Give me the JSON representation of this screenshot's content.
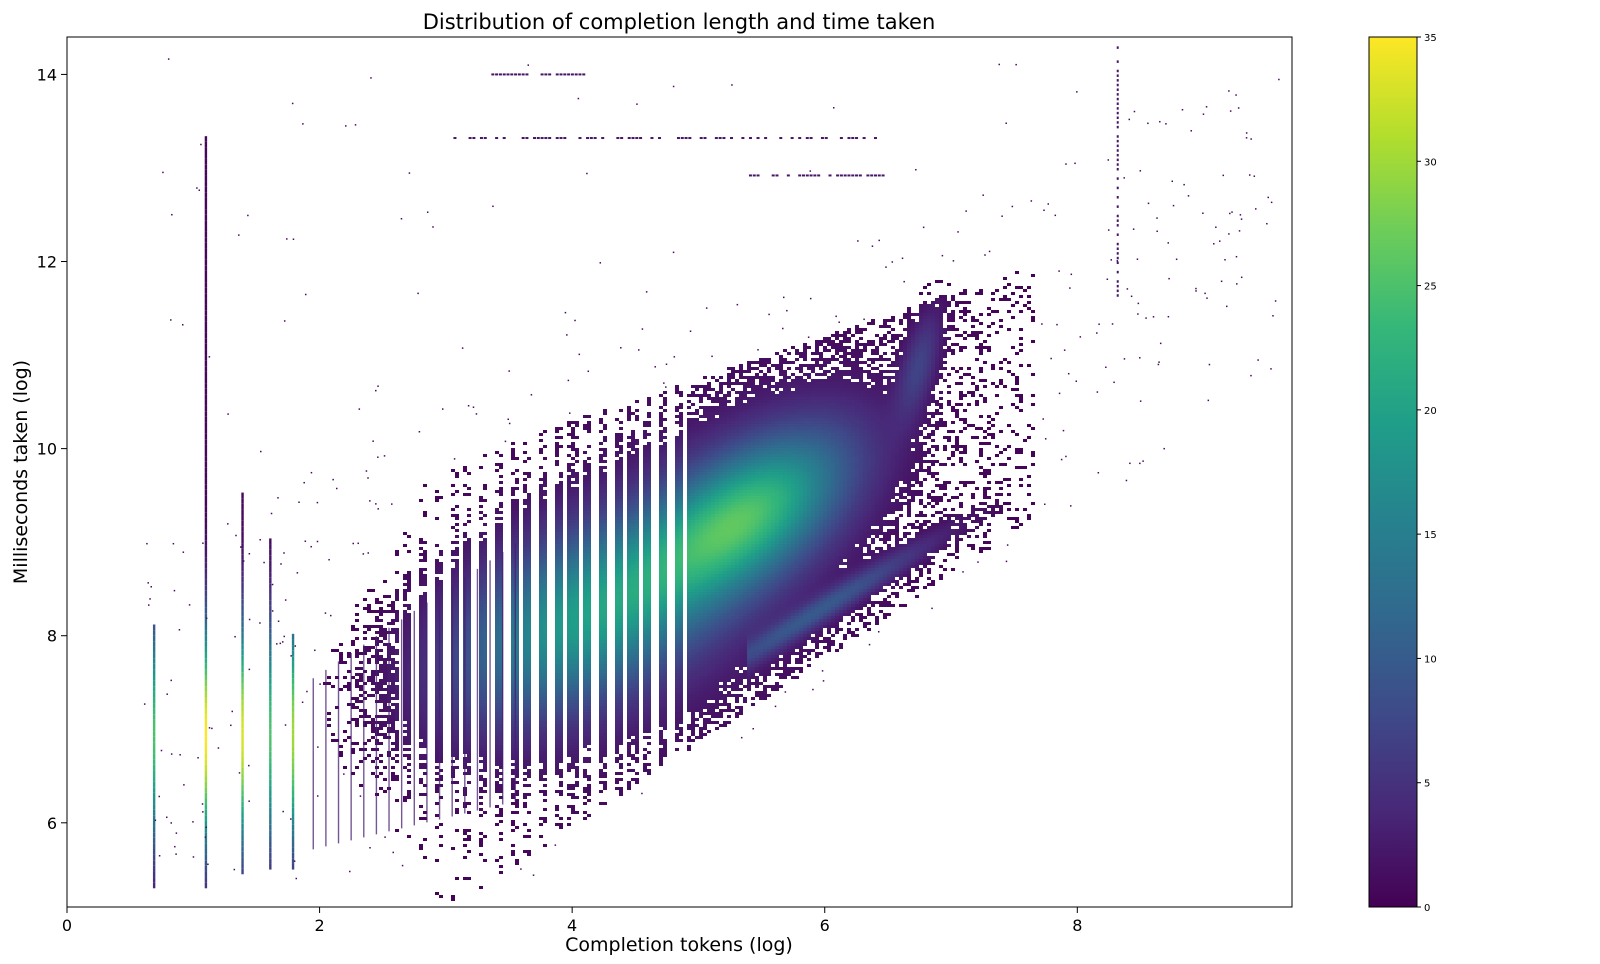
{
  "chart_data": {
    "type": "heatmap",
    "title": "Distribution of completion length and time taken",
    "xlabel": "Completion tokens (log)",
    "ylabel": "Milliseconds taken (log)",
    "xlim": [
      0,
      9.7
    ],
    "ylim": [
      5.1,
      14.4
    ],
    "xticks": [
      {
        "value": 0,
        "label": "0"
      },
      {
        "value": 2,
        "label": "2"
      },
      {
        "value": 4,
        "label": "4"
      },
      {
        "value": 6,
        "label": "6"
      },
      {
        "value": 8,
        "label": "8"
      }
    ],
    "yticks": [
      {
        "value": 6,
        "label": "6"
      },
      {
        "value": 8,
        "label": "8"
      },
      {
        "value": 10,
        "label": "10"
      },
      {
        "value": 12,
        "label": "12"
      },
      {
        "value": 14,
        "label": "14"
      }
    ],
    "colorbar": {
      "colormap": "viridis",
      "range": [
        0,
        35
      ],
      "ticks": [
        {
          "value": 0,
          "label": "0"
        },
        {
          "value": 5,
          "label": "5"
        },
        {
          "value": 10,
          "label": "10"
        },
        {
          "value": 15,
          "label": "15"
        },
        {
          "value": 20,
          "label": "20"
        },
        {
          "value": 25,
          "label": "25"
        },
        {
          "value": 30,
          "label": "30"
        },
        {
          "value": 35,
          "label": "35"
        }
      ]
    },
    "grid": false,
    "legend": "colorbar-right",
    "density_regions": [
      {
        "name": "main-blob",
        "x": 5.4,
        "y": 9.3,
        "count": 24
      },
      {
        "name": "vertical-stripes",
        "x": 4.1,
        "y": 8.2,
        "count": 18
      },
      {
        "name": "lower-ridge",
        "x": 6.0,
        "y": 8.9,
        "count": 8
      },
      {
        "name": "upper-ridge",
        "x": 6.75,
        "y": 10.9,
        "count": 6
      }
    ],
    "discrete_columns": [
      {
        "x": 0.69,
        "y": [
          5.3,
          8.1
        ],
        "peak_count": 25
      },
      {
        "x": 1.1,
        "y": [
          5.3,
          13.3
        ],
        "peak_count": 35
      },
      {
        "x": 1.39,
        "y": [
          5.45,
          9.5
        ],
        "peak_count": 33
      },
      {
        "x": 1.61,
        "y": [
          5.5,
          9.0
        ],
        "peak_count": 25
      },
      {
        "x": 1.79,
        "y": [
          5.5,
          8.0
        ],
        "peak_count": 30
      }
    ],
    "horizontal_bands": [
      {
        "y": 14.0,
        "x": [
          3.3,
          4.1
        ]
      },
      {
        "y": 13.32,
        "x": [
          3.0,
          6.5
        ]
      },
      {
        "y": 12.92,
        "x": [
          5.4,
          6.5
        ]
      }
    ],
    "vertical_spike": {
      "x": 8.32,
      "y": [
        11.6,
        14.4
      ]
    }
  }
}
